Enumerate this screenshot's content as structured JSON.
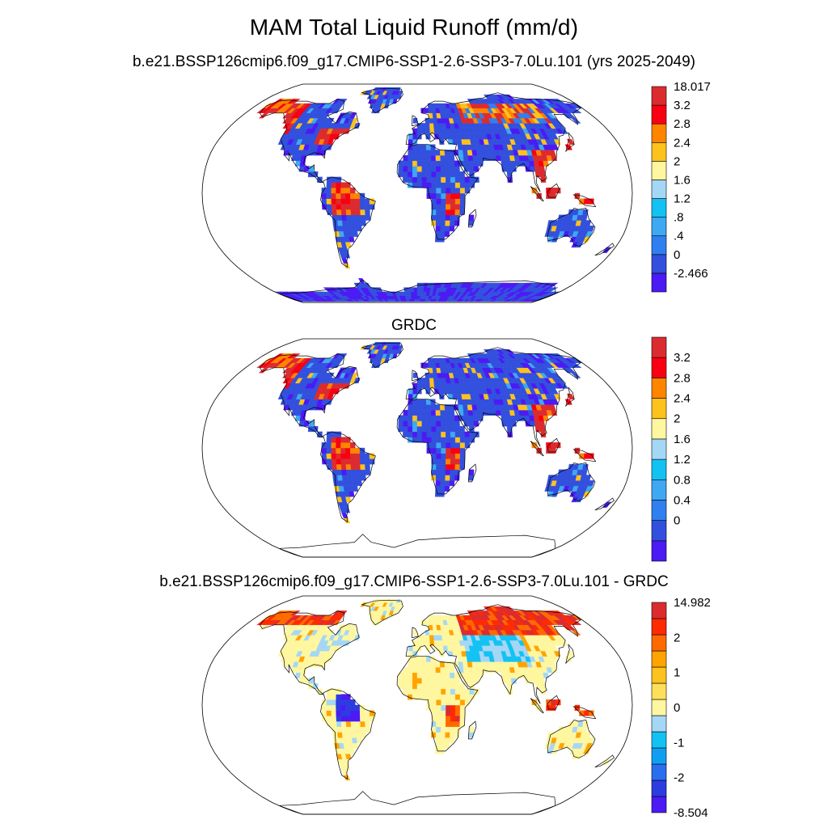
{
  "figure": {
    "main_title": "MAM Total Liquid Runoff (mm/d)"
  },
  "panels": [
    {
      "title": "b.e21.BSSP126cmip6.f09_g17.CMIP6-SSP1-2.6-SSP3-7.0Lu.101 (yrs 2025-2049)",
      "colorbar": {
        "colors": [
          "#4b1af4",
          "#3250dd",
          "#2f7ff0",
          "#3ea8f3",
          "#13c2f3",
          "#a4d7f5",
          "#fff6a0",
          "#fdc21e",
          "#ff8400",
          "#f80012",
          "#dc2b2f"
        ],
        "labels": [
          "18.017",
          "3.2",
          "2.8",
          "2.4",
          "2",
          "1.6",
          "1.2",
          ".8",
          ".4",
          "0",
          "-2.466"
        ]
      },
      "map": {
        "projection": "robinson",
        "antarctica_filled": true,
        "dominant_colors": [
          "#3250dd",
          "#dc2b2f",
          "#fdc21e"
        ]
      }
    },
    {
      "title": "GRDC",
      "colorbar": {
        "colors": [
          "#4b1af4",
          "#3250dd",
          "#2f7ff0",
          "#3ea8f3",
          "#13c2f3",
          "#a4d7f5",
          "#fff6a0",
          "#fdc21e",
          "#ff8400",
          "#f80012",
          "#dc2b2f"
        ],
        "labels": [
          "3.2",
          "2.8",
          "2.4",
          "2",
          "1.6",
          "1.2",
          "0.8",
          "0.4",
          "0"
        ]
      },
      "map": {
        "projection": "robinson",
        "antarctica_filled": false,
        "dominant_colors": [
          "#3250dd",
          "#dc2b2f",
          "#fdc21e"
        ]
      }
    },
    {
      "title": "b.e21.BSSP126cmip6.f09_g17.CMIP6-SSP1-2.6-SSP3-7.0Lu.101 - GRDC",
      "colorbar": {
        "colors": [
          "#4b1af4",
          "#2d3ce0",
          "#2a6ef0",
          "#109ff0",
          "#13c2f3",
          "#a4d7f5",
          "#fff6a0",
          "#fde05a",
          "#fdc21e",
          "#ffa300",
          "#ff6a00",
          "#ff2a00",
          "#dc2b2f"
        ],
        "labels": [
          "14.982",
          "2",
          "1",
          "0",
          "-1",
          "-2",
          "-8.504"
        ]
      },
      "map": {
        "projection": "robinson",
        "antarctica_filled": false,
        "dominant_colors": [
          "#fff6a0",
          "#a4d7f5",
          "#dc2b2f"
        ]
      }
    }
  ]
}
